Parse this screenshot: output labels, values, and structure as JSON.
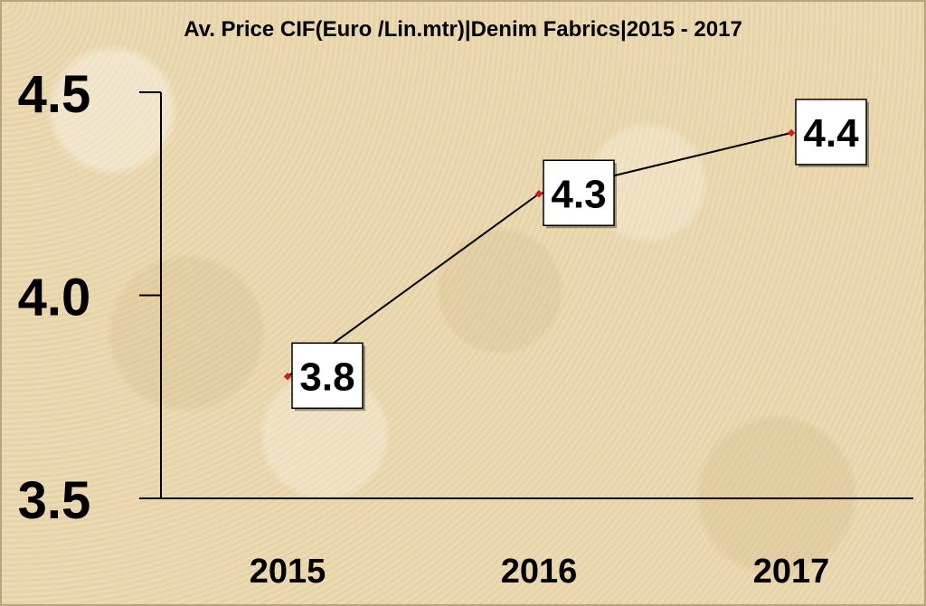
{
  "chart_data": {
    "type": "line",
    "title": "Av. Price CIF(Euro /Lin.mtr)|Denim Fabrics|2015 - 2017",
    "categories": [
      "2015",
      "2016",
      "2017"
    ],
    "values": [
      3.8,
      4.25,
      4.4
    ],
    "data_labels": [
      "3.8",
      "4.3",
      "4.4"
    ],
    "ylim": [
      3.5,
      4.5
    ],
    "y_ticks": [
      "4.5",
      "4.0",
      "3.5"
    ],
    "grid": false,
    "legend": "none",
    "line_color": "#000000",
    "marker_color": "#d11f1f",
    "background_color": "#ead7ad"
  }
}
